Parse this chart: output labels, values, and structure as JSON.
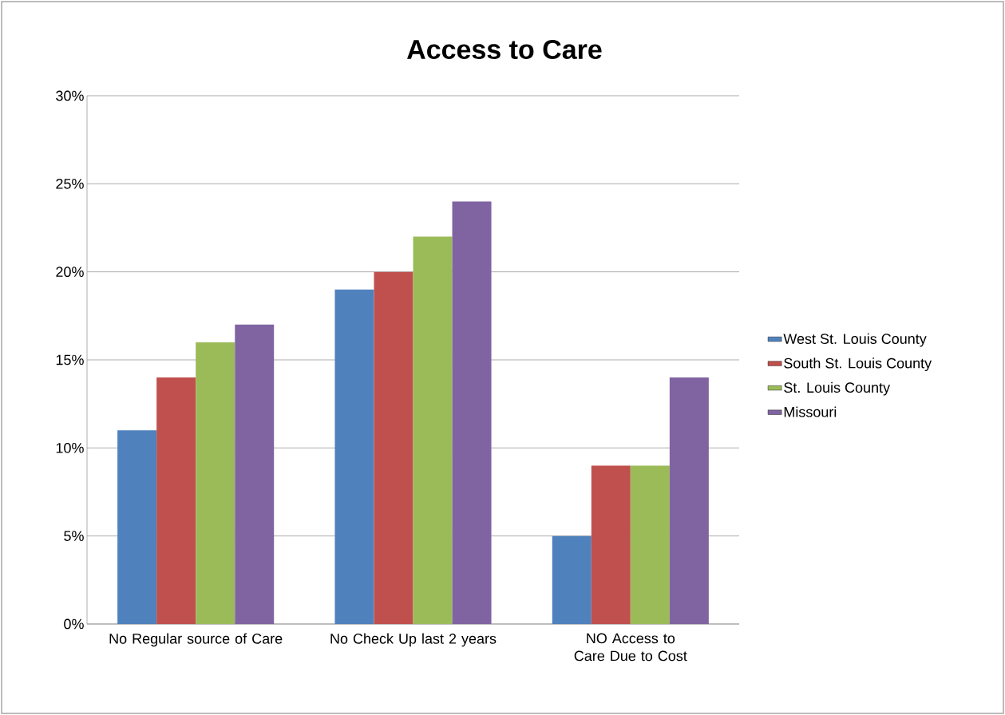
{
  "chart_data": {
    "type": "bar",
    "title": "Access to Care",
    "categories": [
      "No Regular source of Care",
      "No Check Up last 2 years",
      "NO Access to Care Due to Cost"
    ],
    "series": [
      {
        "name": "West St. Louis County",
        "color": "#4f81bd",
        "values": [
          11,
          19,
          5
        ]
      },
      {
        "name": "South St. Louis County",
        "color": "#c0504d",
        "values": [
          14,
          20,
          9
        ]
      },
      {
        "name": "St. Louis County",
        "color": "#9bbb59",
        "values": [
          16,
          22,
          9
        ]
      },
      {
        "name": "Missouri",
        "color": "#8064a2",
        "values": [
          17,
          24,
          14
        ]
      }
    ],
    "ylim": [
      0,
      30
    ],
    "yticks": [
      {
        "value": 0,
        "label": "0%"
      },
      {
        "value": 5,
        "label": "5%"
      },
      {
        "value": 10,
        "label": "10%"
      },
      {
        "value": 15,
        "label": "15%"
      },
      {
        "value": 20,
        "label": "20%"
      },
      {
        "value": 25,
        "label": "25%"
      },
      {
        "value": 30,
        "label": "30%"
      }
    ],
    "grid": "y",
    "legend": "right"
  }
}
